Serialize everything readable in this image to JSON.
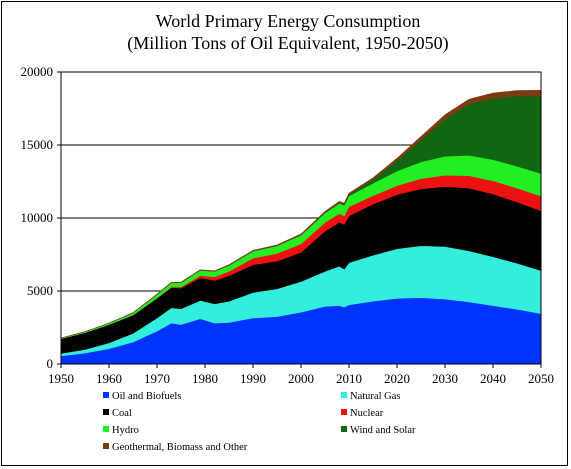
{
  "chart_data": {
    "type": "area",
    "stacked": true,
    "title": "World Primary Energy Consumption",
    "subtitle": "(Million Tons of Oil Equivalent, 1950-2050)",
    "xlim": [
      1950,
      2050
    ],
    "ylim": [
      0,
      20000
    ],
    "xticks": [
      1950,
      1960,
      1970,
      1980,
      1990,
      2000,
      2010,
      2020,
      2030,
      2040,
      2050
    ],
    "yticks": [
      0,
      5000,
      10000,
      15000,
      20000
    ],
    "grid": "horizontal",
    "legend_position": "bottom",
    "x": [
      1950,
      1955,
      1960,
      1965,
      1970,
      1973,
      1975,
      1979,
      1982,
      1985,
      1990,
      1995,
      2000,
      2005,
      2008,
      2009,
      2010,
      2015,
      2020,
      2025,
      2030,
      2035,
      2040,
      2045,
      2050
    ],
    "series": [
      {
        "name": "Oil and Biofuels",
        "color": "#0033ff",
        "values": [
          550,
          750,
          1050,
          1500,
          2250,
          2800,
          2700,
          3100,
          2800,
          2850,
          3150,
          3250,
          3550,
          3950,
          4000,
          3900,
          4050,
          4300,
          4500,
          4550,
          4450,
          4250,
          4000,
          3750,
          3450
        ]
      },
      {
        "name": "Natural Gas",
        "color": "#33eedd",
        "values": [
          180,
          250,
          400,
          600,
          900,
          1050,
          1080,
          1250,
          1320,
          1450,
          1750,
          1900,
          2100,
          2400,
          2700,
          2600,
          2900,
          3150,
          3400,
          3550,
          3600,
          3500,
          3350,
          3150,
          2950
        ]
      },
      {
        "name": "Coal",
        "color": "#000000",
        "values": [
          1000,
          1150,
          1250,
          1250,
          1350,
          1380,
          1420,
          1550,
          1600,
          1750,
          1900,
          1900,
          2000,
          2750,
          3000,
          3050,
          3200,
          3500,
          3700,
          3900,
          4100,
          4300,
          4300,
          4200,
          4100
        ]
      },
      {
        "name": "Nuclear",
        "color": "#ee1111",
        "values": [
          0,
          0,
          0,
          10,
          20,
          50,
          80,
          160,
          250,
          300,
          450,
          520,
          580,
          600,
          610,
          600,
          620,
          580,
          620,
          700,
          780,
          850,
          900,
          950,
          1000
        ]
      },
      {
        "name": "Hydro",
        "color": "#22ee22",
        "values": [
          40,
          60,
          90,
          140,
          250,
          290,
          300,
          360,
          380,
          410,
          480,
          530,
          600,
          650,
          700,
          720,
          750,
          850,
          1000,
          1150,
          1300,
          1400,
          1450,
          1500,
          1550
        ]
      },
      {
        "name": "Wind and Solar",
        "color": "#116611",
        "values": [
          0,
          0,
          0,
          0,
          0,
          0,
          0,
          0,
          0,
          0,
          0,
          0,
          10,
          30,
          50,
          60,
          90,
          250,
          700,
          1500,
          2550,
          3500,
          4200,
          4800,
          5300
        ]
      },
      {
        "name": "Geothermal, Biomass and Other",
        "color": "#7a3c10",
        "values": [
          5,
          5,
          10,
          15,
          20,
          25,
          25,
          30,
          35,
          40,
          50,
          55,
          60,
          70,
          80,
          85,
          90,
          120,
          170,
          230,
          290,
          330,
          360,
          380,
          400
        ]
      }
    ]
  }
}
